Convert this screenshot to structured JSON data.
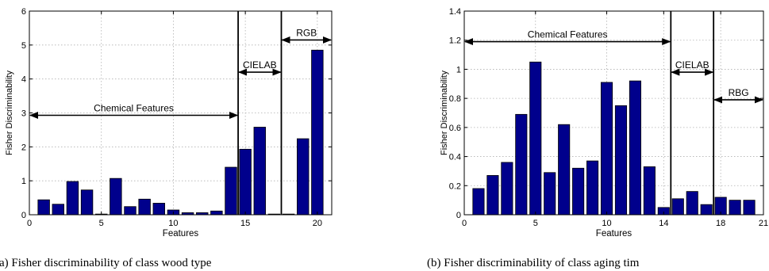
{
  "chart_data": [
    {
      "type": "bar",
      "subcaption": "(a) Fisher discriminability of class wood type",
      "xlabel": "Features",
      "ylabel": "Fisher Discriminability",
      "xlim": [
        0,
        21
      ],
      "ylim": [
        0,
        6
      ],
      "xticks": [
        0,
        5,
        10,
        15,
        20
      ],
      "yticks": [
        0,
        1,
        2,
        3,
        4,
        5,
        6
      ],
      "grid": true,
      "x": [
        1,
        2,
        3,
        4,
        5,
        6,
        7,
        8,
        9,
        10,
        11,
        12,
        13,
        14,
        15,
        16,
        17,
        18,
        19,
        20
      ],
      "values": [
        0.44,
        0.31,
        0.98,
        0.73,
        0.02,
        1.07,
        0.24,
        0.46,
        0.34,
        0.14,
        0.06,
        0.06,
        0.11,
        1.4,
        1.93,
        2.58,
        0.02,
        0.02,
        2.24,
        4.85
      ],
      "separators": [
        14.5,
        17.5
      ],
      "groups": [
        {
          "label": "Chemical Features",
          "from": 0,
          "to": 14.5,
          "y": 2.93
        },
        {
          "label": "CIELAB",
          "from": 14.5,
          "to": 17.5,
          "y": 4.2
        },
        {
          "label": "RGB",
          "from": 17.5,
          "to": 21,
          "y": 5.15
        }
      ]
    },
    {
      "type": "bar",
      "subcaption": "(b) Fisher discriminability of class aging tim",
      "xlabel": "Features",
      "ylabel": "Fisher Discriminability",
      "xlim": [
        0,
        21
      ],
      "ylim": [
        0,
        1.4
      ],
      "xticks": [
        0,
        5,
        10,
        14,
        18,
        21
      ],
      "yticks": [
        0,
        0.2,
        0.4,
        0.6,
        0.8,
        1,
        1.2,
        1.4
      ],
      "grid": true,
      "x": [
        1,
        2,
        3,
        4,
        5,
        6,
        7,
        8,
        9,
        10,
        11,
        12,
        13,
        14,
        15,
        16,
        17,
        18,
        19,
        20
      ],
      "values": [
        0.18,
        0.27,
        0.36,
        0.69,
        1.05,
        0.29,
        0.62,
        0.32,
        0.37,
        0.91,
        0.75,
        0.92,
        0.33,
        0.05,
        0.11,
        0.16,
        0.07,
        0.12,
        0.1,
        0.1
      ],
      "separators": [
        14.5,
        17.5
      ],
      "groups": [
        {
          "label": "Chemical Features",
          "from": 0,
          "to": 14.5,
          "y": 1.19
        },
        {
          "label": "CIELAB",
          "from": 14.5,
          "to": 17.5,
          "y": 0.98
        },
        {
          "label": "RBG",
          "from": 17.5,
          "to": 21,
          "y": 0.79
        }
      ]
    }
  ]
}
